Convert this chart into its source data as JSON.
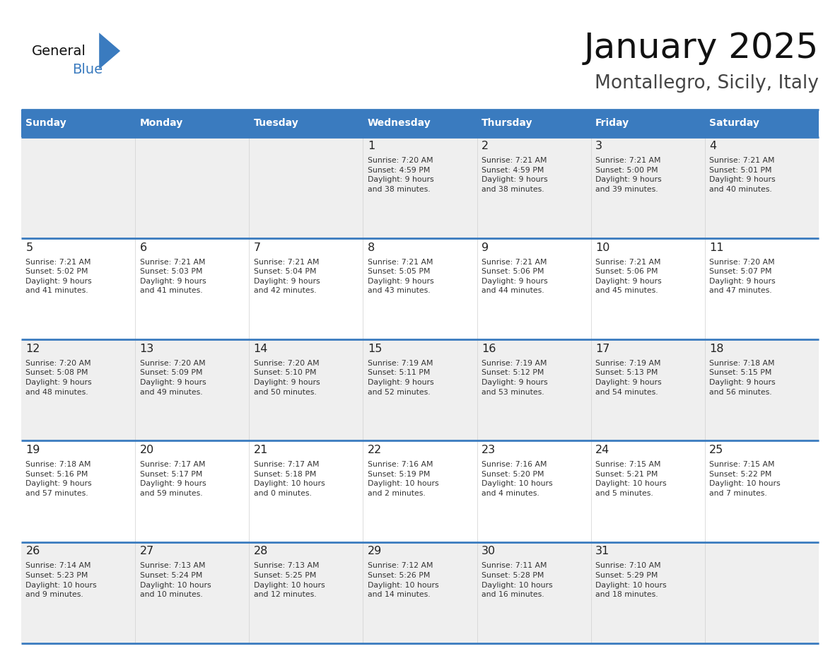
{
  "title": "January 2025",
  "subtitle": "Montallegro, Sicily, Italy",
  "days_of_week": [
    "Sunday",
    "Monday",
    "Tuesday",
    "Wednesday",
    "Thursday",
    "Friday",
    "Saturday"
  ],
  "header_bg": "#3a7bbf",
  "header_text": "#ffffff",
  "row_bg_odd": "#efefef",
  "row_bg_even": "#ffffff",
  "cell_text_color": "#333333",
  "day_num_color": "#222222",
  "border_color": "#3a7bbf",
  "title_color": "#111111",
  "subtitle_color": "#444444",
  "logo_general_color": "#111111",
  "logo_blue_color": "#3a7bbf",
  "calendar_data": [
    [
      {
        "day": "",
        "info": ""
      },
      {
        "day": "",
        "info": ""
      },
      {
        "day": "",
        "info": ""
      },
      {
        "day": "1",
        "info": "Sunrise: 7:20 AM\nSunset: 4:59 PM\nDaylight: 9 hours\nand 38 minutes."
      },
      {
        "day": "2",
        "info": "Sunrise: 7:21 AM\nSunset: 4:59 PM\nDaylight: 9 hours\nand 38 minutes."
      },
      {
        "day": "3",
        "info": "Sunrise: 7:21 AM\nSunset: 5:00 PM\nDaylight: 9 hours\nand 39 minutes."
      },
      {
        "day": "4",
        "info": "Sunrise: 7:21 AM\nSunset: 5:01 PM\nDaylight: 9 hours\nand 40 minutes."
      }
    ],
    [
      {
        "day": "5",
        "info": "Sunrise: 7:21 AM\nSunset: 5:02 PM\nDaylight: 9 hours\nand 41 minutes."
      },
      {
        "day": "6",
        "info": "Sunrise: 7:21 AM\nSunset: 5:03 PM\nDaylight: 9 hours\nand 41 minutes."
      },
      {
        "day": "7",
        "info": "Sunrise: 7:21 AM\nSunset: 5:04 PM\nDaylight: 9 hours\nand 42 minutes."
      },
      {
        "day": "8",
        "info": "Sunrise: 7:21 AM\nSunset: 5:05 PM\nDaylight: 9 hours\nand 43 minutes."
      },
      {
        "day": "9",
        "info": "Sunrise: 7:21 AM\nSunset: 5:06 PM\nDaylight: 9 hours\nand 44 minutes."
      },
      {
        "day": "10",
        "info": "Sunrise: 7:21 AM\nSunset: 5:06 PM\nDaylight: 9 hours\nand 45 minutes."
      },
      {
        "day": "11",
        "info": "Sunrise: 7:20 AM\nSunset: 5:07 PM\nDaylight: 9 hours\nand 47 minutes."
      }
    ],
    [
      {
        "day": "12",
        "info": "Sunrise: 7:20 AM\nSunset: 5:08 PM\nDaylight: 9 hours\nand 48 minutes."
      },
      {
        "day": "13",
        "info": "Sunrise: 7:20 AM\nSunset: 5:09 PM\nDaylight: 9 hours\nand 49 minutes."
      },
      {
        "day": "14",
        "info": "Sunrise: 7:20 AM\nSunset: 5:10 PM\nDaylight: 9 hours\nand 50 minutes."
      },
      {
        "day": "15",
        "info": "Sunrise: 7:19 AM\nSunset: 5:11 PM\nDaylight: 9 hours\nand 52 minutes."
      },
      {
        "day": "16",
        "info": "Sunrise: 7:19 AM\nSunset: 5:12 PM\nDaylight: 9 hours\nand 53 minutes."
      },
      {
        "day": "17",
        "info": "Sunrise: 7:19 AM\nSunset: 5:13 PM\nDaylight: 9 hours\nand 54 minutes."
      },
      {
        "day": "18",
        "info": "Sunrise: 7:18 AM\nSunset: 5:15 PM\nDaylight: 9 hours\nand 56 minutes."
      }
    ],
    [
      {
        "day": "19",
        "info": "Sunrise: 7:18 AM\nSunset: 5:16 PM\nDaylight: 9 hours\nand 57 minutes."
      },
      {
        "day": "20",
        "info": "Sunrise: 7:17 AM\nSunset: 5:17 PM\nDaylight: 9 hours\nand 59 minutes."
      },
      {
        "day": "21",
        "info": "Sunrise: 7:17 AM\nSunset: 5:18 PM\nDaylight: 10 hours\nand 0 minutes."
      },
      {
        "day": "22",
        "info": "Sunrise: 7:16 AM\nSunset: 5:19 PM\nDaylight: 10 hours\nand 2 minutes."
      },
      {
        "day": "23",
        "info": "Sunrise: 7:16 AM\nSunset: 5:20 PM\nDaylight: 10 hours\nand 4 minutes."
      },
      {
        "day": "24",
        "info": "Sunrise: 7:15 AM\nSunset: 5:21 PM\nDaylight: 10 hours\nand 5 minutes."
      },
      {
        "day": "25",
        "info": "Sunrise: 7:15 AM\nSunset: 5:22 PM\nDaylight: 10 hours\nand 7 minutes."
      }
    ],
    [
      {
        "day": "26",
        "info": "Sunrise: 7:14 AM\nSunset: 5:23 PM\nDaylight: 10 hours\nand 9 minutes."
      },
      {
        "day": "27",
        "info": "Sunrise: 7:13 AM\nSunset: 5:24 PM\nDaylight: 10 hours\nand 10 minutes."
      },
      {
        "day": "28",
        "info": "Sunrise: 7:13 AM\nSunset: 5:25 PM\nDaylight: 10 hours\nand 12 minutes."
      },
      {
        "day": "29",
        "info": "Sunrise: 7:12 AM\nSunset: 5:26 PM\nDaylight: 10 hours\nand 14 minutes."
      },
      {
        "day": "30",
        "info": "Sunrise: 7:11 AM\nSunset: 5:28 PM\nDaylight: 10 hours\nand 16 minutes."
      },
      {
        "day": "31",
        "info": "Sunrise: 7:10 AM\nSunset: 5:29 PM\nDaylight: 10 hours\nand 18 minutes."
      },
      {
        "day": "",
        "info": ""
      }
    ]
  ]
}
